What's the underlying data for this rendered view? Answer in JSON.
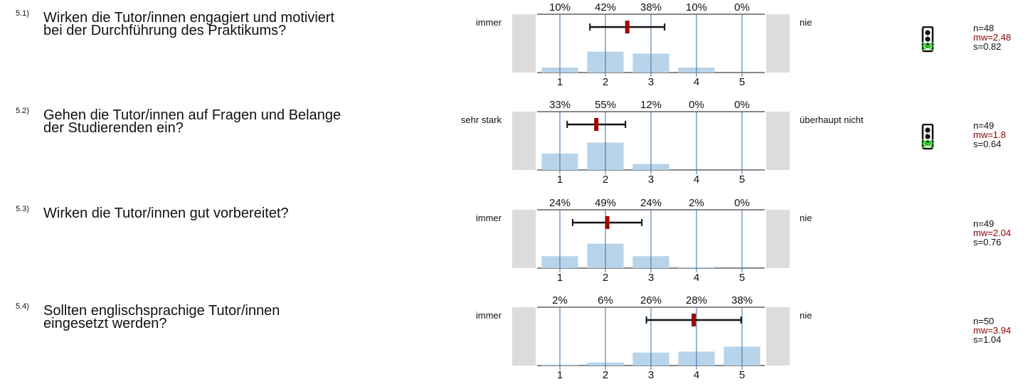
{
  "items": [
    {
      "num": "5.1)",
      "question_line1": "Wirken die Tutor/innen engagiert und motiviert",
      "question_line2": "bei der Durchführung des Praktikums?",
      "left_label": "immer",
      "right_label": "nie",
      "n": "n=48",
      "mw": "mw=2.48",
      "s": "s=0.82",
      "traffic_light": true
    },
    {
      "num": "5.2)",
      "question_line1": "Gehen die Tutor/innen auf Fragen und Belange",
      "question_line2": "der Studierenden ein?",
      "left_label": "sehr stark",
      "right_label": "überhaupt nicht",
      "n": "n=49",
      "mw": "mw=1.8",
      "s": "s=0.64",
      "traffic_light": true
    },
    {
      "num": "5.3)",
      "question_line1": "Wirken die Tutor/innen gut vorbereitet?",
      "question_line2": "",
      "left_label": "immer",
      "right_label": "nie",
      "n": "n=49",
      "mw": "mw=2.04",
      "s": "s=0.76",
      "traffic_light": false
    },
    {
      "num": "5.4)",
      "question_line1": "Sollten englischsprachige Tutor/innen",
      "question_line2": "eingesetzt werden?",
      "left_label": "immer",
      "right_label": "nie",
      "n": "n=50",
      "mw": "mw=3.94",
      "s": "s=1.04",
      "traffic_light": false
    }
  ],
  "colors": {
    "bar": "#b7d4ea",
    "axis_line": "#3a6ea5",
    "mean_marker": "#a00000",
    "whisker": "#111111",
    "side_box": "#dcdcdc",
    "mw_text": "#8b0000",
    "traffic_light": "#111111",
    "traffic_cross": "#22cc22"
  },
  "chart_data": [
    {
      "type": "bar",
      "categories": [
        "1",
        "2",
        "3",
        "4",
        "5"
      ],
      "values": [
        10,
        42,
        38,
        10,
        0
      ],
      "value_labels": [
        "10%",
        "42%",
        "38%",
        "10%",
        "0%"
      ],
      "mean": 2.48,
      "sd": 0.82,
      "ylim": [
        0,
        100
      ]
    },
    {
      "type": "bar",
      "categories": [
        "1",
        "2",
        "3",
        "4",
        "5"
      ],
      "values": [
        33,
        55,
        12,
        0,
        0
      ],
      "value_labels": [
        "33%",
        "55%",
        "12%",
        "0%",
        "0%"
      ],
      "mean": 1.8,
      "sd": 0.64,
      "ylim": [
        0,
        100
      ]
    },
    {
      "type": "bar",
      "categories": [
        "1",
        "2",
        "3",
        "4",
        "5"
      ],
      "values": [
        24,
        49,
        24,
        2,
        0
      ],
      "value_labels": [
        "24%",
        "49%",
        "24%",
        "2%",
        "0%"
      ],
      "mean": 2.04,
      "sd": 0.76,
      "ylim": [
        0,
        100
      ]
    },
    {
      "type": "bar",
      "categories": [
        "1",
        "2",
        "3",
        "4",
        "5"
      ],
      "values": [
        2,
        6,
        26,
        28,
        38
      ],
      "value_labels": [
        "2%",
        "6%",
        "26%",
        "28%",
        "38%"
      ],
      "mean": 3.94,
      "sd": 1.04,
      "ylim": [
        0,
        100
      ]
    }
  ]
}
